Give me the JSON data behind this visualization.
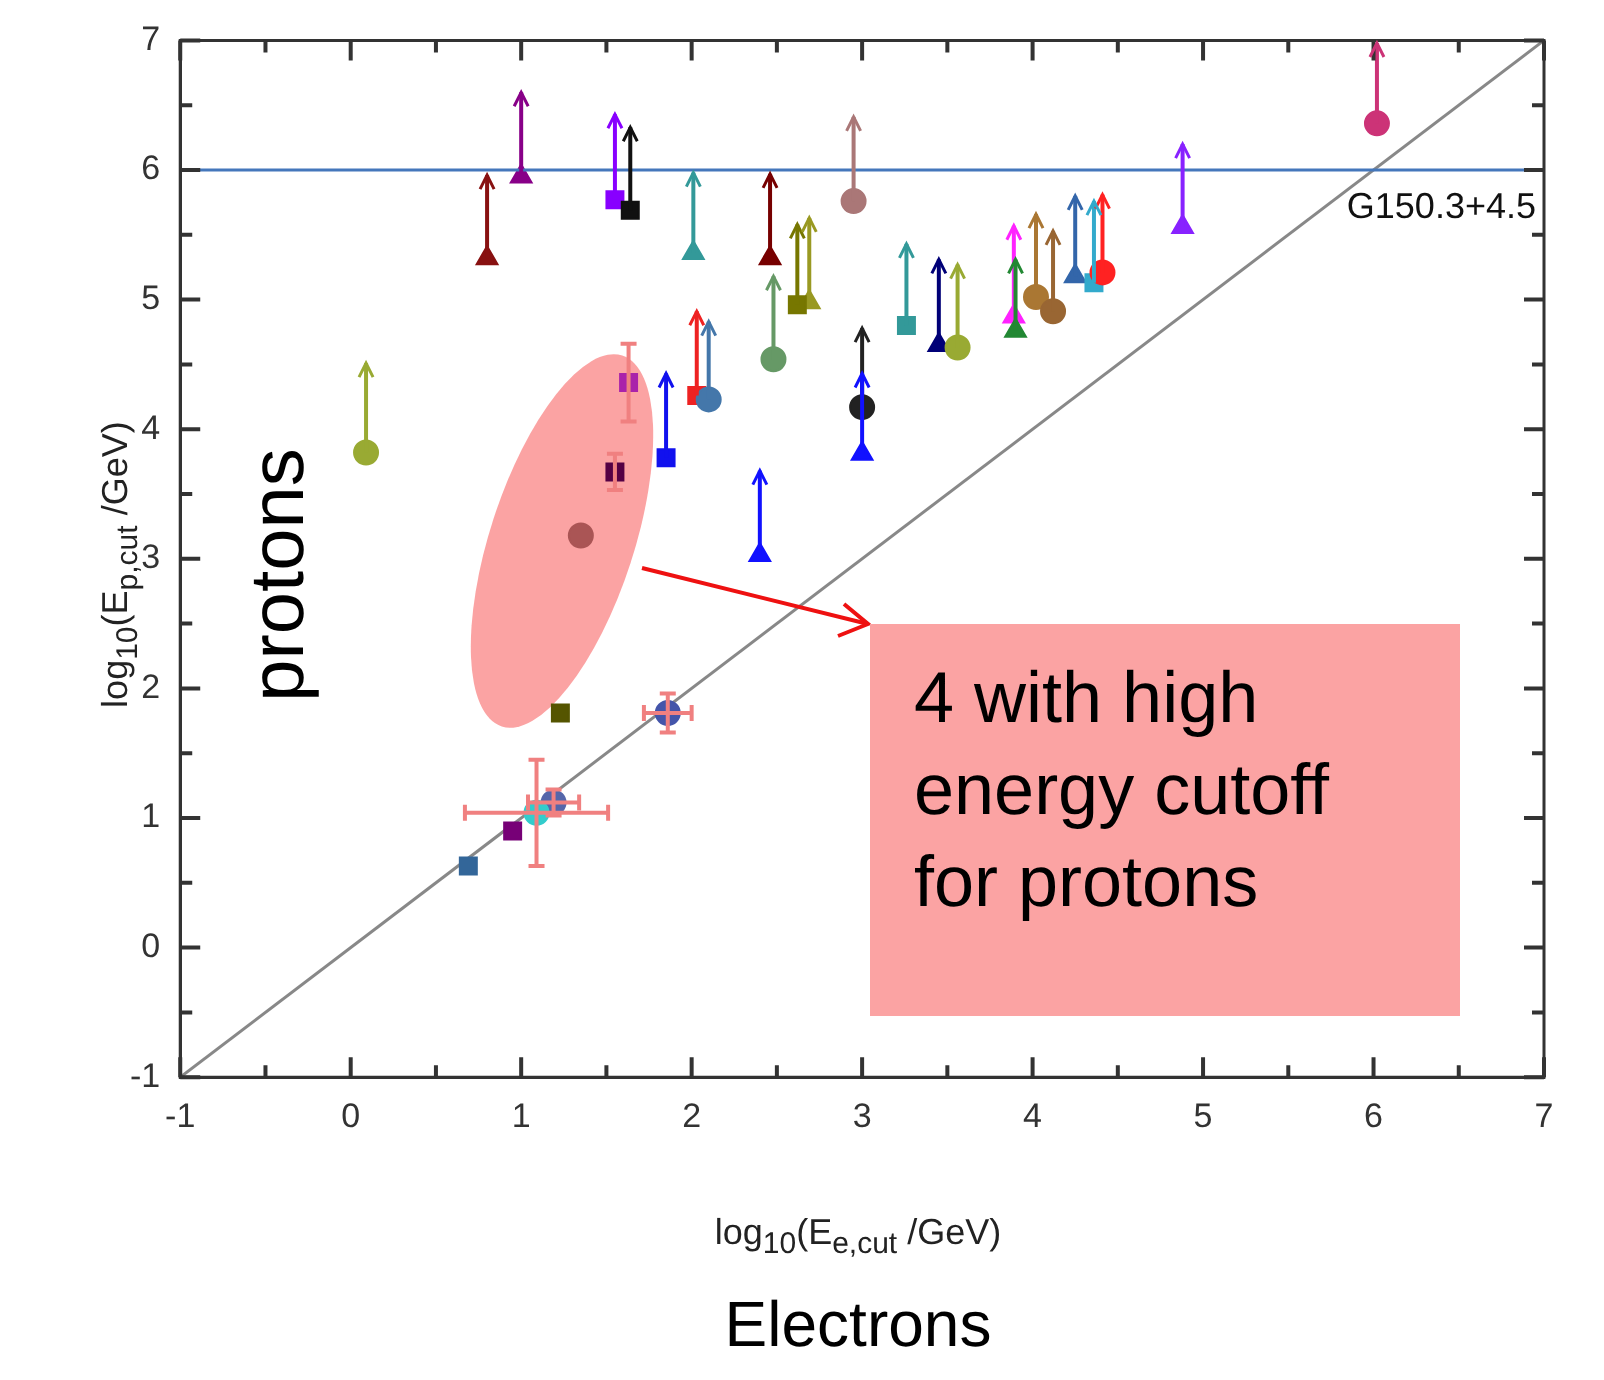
{
  "chart_data": {
    "type": "scatter",
    "xlabel": "log$_{10}$(E$_{e,cut}$ /GeV)",
    "ylabel": "log$_{10}$(E$_{p,cut}$ /GeV)",
    "xlim": [
      -1,
      7
    ],
    "ylim": [
      -1,
      7
    ],
    "xticks": [
      -1,
      {
        "value": -0.5,
        "label": null
      },
      0,
      {
        "value": 0.5,
        "label": null
      },
      1,
      {
        "value": 1.5,
        "label": null
      },
      2,
      {
        "value": 2.5,
        "label": null
      },
      3,
      {
        "value": 3.5,
        "label": null
      },
      4,
      {
        "value": 4.5,
        "label": null
      },
      5,
      {
        "value": 5.5,
        "label": null
      },
      6,
      {
        "value": 6.5,
        "label": null
      },
      7
    ],
    "yticks": [
      -1,
      {
        "value": -0.5,
        "label": null
      },
      0,
      {
        "value": 0.5,
        "label": null
      },
      1,
      {
        "value": 1.5,
        "label": null
      },
      2,
      {
        "value": 2.5,
        "label": null
      },
      3,
      {
        "value": 3.5,
        "label": null
      },
      4,
      {
        "value": 4.5,
        "label": null
      },
      5,
      {
        "value": 5.5,
        "label": null
      },
      6,
      {
        "value": 6.5,
        "label": null
      },
      7
    ],
    "grid": false,
    "legend": false,
    "series": [
      {
        "marker": "circle",
        "x": [
          0.09,
          1.35,
          2.1,
          2.48,
          2.95,
          3.0,
          3.56,
          4.02,
          4.12,
          4.41,
          6.02,
          1.86,
          1.19,
          1.09
        ],
        "values": [
          3.82,
          3.18,
          4.23,
          4.54,
          5.76,
          4.17,
          4.63,
          5.02,
          4.91,
          5.21,
          6.36,
          1.81,
          1.12,
          1.04
        ],
        "colors": [
          "#99aa33",
          "#aa5555",
          "#4477aa",
          "#669966",
          "#aa7777",
          "#222222",
          "#99aa33",
          "#aa7733",
          "#996633",
          "#ff2222",
          "#cc3377",
          "#4455aa",
          "#5566aa",
          "#33cccc"
        ],
        "errors": [
          [
            3.82,
            4.51
          ],
          null,
          [
            4.23,
            4.83
          ],
          [
            4.54,
            5.18
          ],
          [
            5.76,
            6.41
          ],
          [
            4.17,
            4.78
          ],
          [
            4.63,
            5.27
          ],
          [
            5.02,
            5.66
          ],
          [
            4.91,
            5.53
          ],
          [
            5.21,
            5.81
          ],
          [
            6.36,
            6.98
          ],
          0.15,
          0.1,
          0.41
        ],
        "xerrors": [
          null,
          null,
          null,
          null,
          null,
          null,
          null,
          null,
          null,
          null,
          null,
          0.14,
          0.15,
          0.42
        ]
      },
      {
        "marker": "square",
        "x": [
          1.55,
          1.64,
          1.63,
          2.03,
          1.85,
          1.55,
          1.23,
          2.62,
          3.26,
          4.36,
          0.69,
          0.95
        ],
        "values": [
          5.77,
          5.69,
          4.36,
          4.26,
          3.78,
          3.67,
          1.81,
          4.96,
          4.8,
          5.13,
          0.63,
          0.9
        ],
        "colors": [
          "#8800ff",
          "#111111",
          "#aa22aa",
          "#ee2222",
          "#1111ee",
          "#550044",
          "#555500",
          "#777700",
          "#339999",
          "#33aacc",
          "#336699",
          "#770077"
        ],
        "errors": [
          [
            5.77,
            6.43
          ],
          [
            5.69,
            6.33
          ],
          0.3,
          [
            4.26,
            4.91
          ],
          [
            3.78,
            4.43
          ],
          0.14,
          null,
          [
            4.96,
            5.58
          ],
          [
            4.8,
            5.43
          ],
          [
            5.13,
            5.76
          ],
          null,
          null
        ]
      },
      {
        "marker": "triangle",
        "x": [
          0.8,
          1.0,
          2.01,
          2.46,
          2.4,
          2.69,
          3.0,
          3.45,
          3.89,
          3.9,
          4.25,
          4.88
        ],
        "values": [
          5.32,
          5.95,
          5.36,
          5.32,
          3.03,
          4.98,
          3.81,
          4.65,
          4.87,
          4.76,
          5.18,
          5.56
        ],
        "colors": [
          "#881111",
          "#880088",
          "#339999",
          "#770000",
          "#1111ff",
          "#999922",
          "#1111ff",
          "#000077",
          "#ff22ff",
          "#228833",
          "#3366aa",
          "#8822ff"
        ],
        "errors": [
          [
            5.32,
            5.96
          ],
          [
            5.95,
            6.6
          ],
          [
            5.36,
            5.98
          ],
          [
            5.32,
            5.97
          ],
          [
            3.03,
            3.68
          ],
          [
            4.98,
            5.63
          ],
          [
            3.81,
            4.43
          ],
          [
            4.65,
            5.31
          ],
          [
            4.87,
            5.57
          ],
          [
            4.76,
            5.31
          ],
          [
            5.18,
            5.8
          ],
          [
            5.56,
            6.2
          ]
        ]
      },
      {
        "type": "line",
        "marker": "none",
        "color": "#888888",
        "x": [
          -1,
          7
        ],
        "values": [
          -1,
          7
        ]
      }
    ],
    "ref_lines": [
      {
        "axis": "y",
        "value": 6,
        "label": "G150.3+4.5",
        "color": "#4477bb"
      }
    ],
    "annotations": [
      "protons",
      "Electrons",
      "4 with high energy cutoff for protons"
    ]
  }
}
